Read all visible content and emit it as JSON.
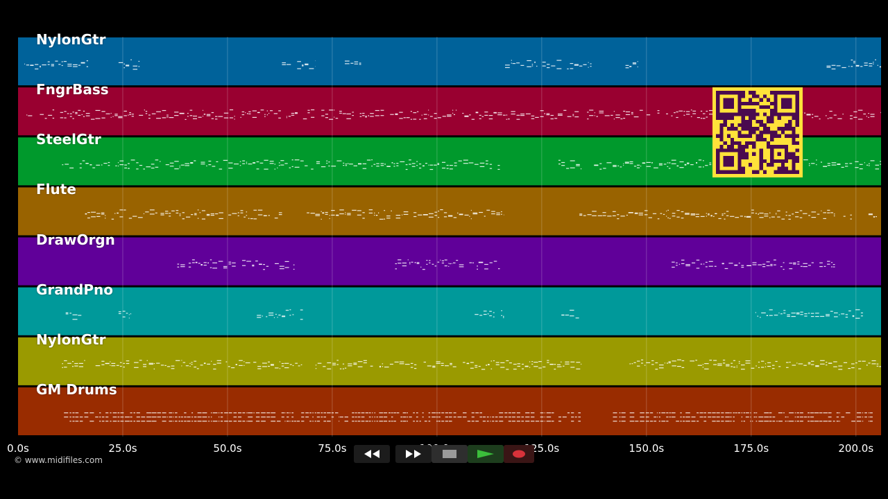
{
  "chart_data": {
    "type": "piano-roll",
    "xlabel": "",
    "x_unit": "s",
    "xlim": [
      0,
      206
    ],
    "x_ticks": [
      "0.0s",
      "25.0s",
      "50.0s",
      "75.0s",
      "100.0s",
      "125.0s",
      "150.0s",
      "175.0s",
      "200.0s"
    ],
    "grid": true,
    "tracks": [
      {
        "name": "NylonGtr",
        "color": "#00629a",
        "segments": [
          [
            1.5,
            18
          ],
          [
            24,
            29
          ],
          [
            63,
            71
          ],
          [
            78,
            82
          ],
          [
            115,
            137
          ],
          [
            145,
            148
          ],
          [
            193,
            206
          ]
        ]
      },
      {
        "name": "FngrBass",
        "color": "#990030",
        "segments": [
          [
            2,
            206
          ]
        ]
      },
      {
        "name": "SteelGtr",
        "color": "#00992c",
        "segments": [
          [
            10.5,
            115
          ],
          [
            129,
            134.5
          ],
          [
            137.5,
            206
          ]
        ]
      },
      {
        "name": "Flute",
        "color": "#996300",
        "segments": [
          [
            16,
            63
          ],
          [
            68,
            116
          ],
          [
            134,
            195
          ],
          [
            197,
            199
          ],
          [
            203,
            205
          ]
        ]
      },
      {
        "name": "DrawOrgn",
        "color": "#600099",
        "segments": [
          [
            38,
            66
          ],
          [
            90,
            115
          ],
          [
            156,
            195
          ]
        ]
      },
      {
        "name": "GrandPno",
        "color": "#00999a",
        "segments": [
          [
            10.5,
            16
          ],
          [
            24,
            27
          ],
          [
            57,
            68
          ],
          [
            109,
            116
          ],
          [
            129,
            134
          ],
          [
            176,
            202
          ]
        ]
      },
      {
        "name": "NylonGtr",
        "color": "#9a9a00",
        "segments": [
          [
            10.5,
            16
          ],
          [
            18.5,
            68
          ],
          [
            71,
            129.5
          ],
          [
            129.5,
            134.5
          ],
          [
            146,
            206
          ]
        ]
      },
      {
        "name": "GM Drums",
        "color": "#992c00",
        "segments": [
          [
            10.5,
            128
          ],
          [
            129,
            134.5
          ],
          [
            142,
            143
          ],
          [
            143.5,
            145
          ],
          [
            146,
            204
          ]
        ]
      }
    ]
  },
  "copyright": "© www.midifiles.com",
  "transport": {
    "rewind_icon": "rewind-icon",
    "forward_icon": "fast-forward-icon",
    "stop_icon": "stop-icon",
    "play_icon": "play-icon",
    "record_icon": "record-icon"
  },
  "qr_icon": "qr-code-icon"
}
